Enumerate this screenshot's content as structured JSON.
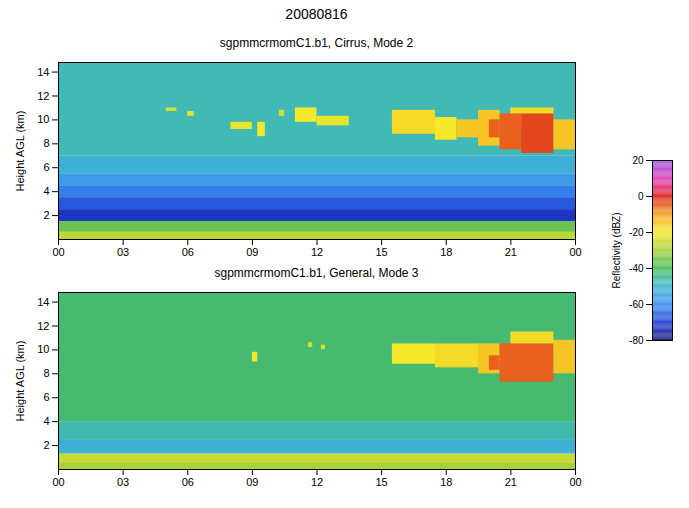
{
  "chart_data": {
    "type": "heatmap",
    "title": "20080816",
    "colorbar": {
      "label": "Reflectivity (dBZ)",
      "range": [
        -80,
        20
      ],
      "ticks": [
        -80,
        -60,
        -40,
        -20,
        0,
        20
      ]
    },
    "panels": [
      {
        "subtitle": "sgpmmcrmomC1.b1, Cirrus, Mode 2",
        "ylabel": "Height AGL (km)",
        "xlim": [
          0,
          24
        ],
        "xticks": [
          {
            "value": 0,
            "label": "00"
          },
          {
            "value": 3,
            "label": "03"
          },
          {
            "value": 6,
            "label": "06"
          },
          {
            "value": 9,
            "label": "09"
          },
          {
            "value": 12,
            "label": "12"
          },
          {
            "value": 15,
            "label": "15"
          },
          {
            "value": 18,
            "label": "18"
          },
          {
            "value": 21,
            "label": "21"
          },
          {
            "value": 24,
            "label": "00"
          }
        ],
        "ylim": [
          0,
          14.8
        ],
        "yticks": [
          2,
          4,
          6,
          8,
          10,
          12,
          14
        ],
        "cells": [
          {
            "t0": 0,
            "t1": 24,
            "h0": 0,
            "h1": 0.6,
            "dbz": -28
          },
          {
            "t0": 0,
            "t1": 24,
            "h0": 0.6,
            "h1": 1.5,
            "dbz": -36
          },
          {
            "t0": 0,
            "t1": 24,
            "h0": 1.5,
            "h1": 2.5,
            "dbz": -72
          },
          {
            "t0": 0,
            "t1": 24,
            "h0": 2.5,
            "h1": 3.5,
            "dbz": -67
          },
          {
            "t0": 0,
            "t1": 24,
            "h0": 3.5,
            "h1": 4.5,
            "dbz": -62
          },
          {
            "t0": 0,
            "t1": 24,
            "h0": 4.5,
            "h1": 5.5,
            "dbz": -57
          },
          {
            "t0": 0,
            "t1": 24,
            "h0": 5.5,
            "h1": 7,
            "dbz": -52
          },
          {
            "t0": 0,
            "t1": 24,
            "h0": 7,
            "h1": 14.8,
            "dbz": -48
          },
          {
            "t0": 5,
            "t1": 5.5,
            "h0": 10.7,
            "h1": 11,
            "dbz": -25
          },
          {
            "t0": 6,
            "t1": 6.3,
            "h0": 10.3,
            "h1": 10.7,
            "dbz": -22
          },
          {
            "t0": 8,
            "t1": 9,
            "h0": 9.2,
            "h1": 9.8,
            "dbz": -22
          },
          {
            "t0": 9.25,
            "t1": 9.6,
            "h0": 8.6,
            "h1": 9.8,
            "dbz": -20
          },
          {
            "t0": 10.25,
            "t1": 10.5,
            "h0": 10.3,
            "h1": 10.8,
            "dbz": -25
          },
          {
            "t0": 11,
            "t1": 12,
            "h0": 9.8,
            "h1": 11,
            "dbz": -20
          },
          {
            "t0": 12,
            "t1": 13.5,
            "h0": 9.5,
            "h1": 10.3,
            "dbz": -22
          },
          {
            "t0": 15.5,
            "t1": 17.5,
            "h0": 8.8,
            "h1": 10.8,
            "dbz": -18
          },
          {
            "t0": 17.5,
            "t1": 18.5,
            "h0": 8.3,
            "h1": 10.2,
            "dbz": -20
          },
          {
            "t0": 18.5,
            "t1": 19.5,
            "h0": 8.5,
            "h1": 10,
            "dbz": -15
          },
          {
            "t0": 19.5,
            "t1": 20.5,
            "h0": 7.8,
            "h1": 10.8,
            "dbz": -15
          },
          {
            "t0": 20,
            "t1": 20.5,
            "h0": 8.5,
            "h1": 10,
            "dbz": -5
          },
          {
            "t0": 21,
            "t1": 23,
            "h0": 9.5,
            "h1": 11,
            "dbz": -18
          },
          {
            "t0": 20.5,
            "t1": 21.5,
            "h0": 7.5,
            "h1": 10.5,
            "dbz": -5
          },
          {
            "t0": 21.5,
            "t1": 23,
            "h0": 7.2,
            "h1": 10.5,
            "dbz": -3
          },
          {
            "t0": 23,
            "t1": 24,
            "h0": 7.5,
            "h1": 10,
            "dbz": -15
          }
        ]
      },
      {
        "subtitle": "sgpmmcrmomC1.b1, General, Mode 3",
        "ylabel": "Height AGL (km)",
        "xlim": [
          0,
          24
        ],
        "xticks": [
          {
            "value": 0,
            "label": "00"
          },
          {
            "value": 3,
            "label": "03"
          },
          {
            "value": 6,
            "label": "06"
          },
          {
            "value": 9,
            "label": "09"
          },
          {
            "value": 12,
            "label": "12"
          },
          {
            "value": 15,
            "label": "15"
          },
          {
            "value": 18,
            "label": "18"
          },
          {
            "value": 21,
            "label": "21"
          },
          {
            "value": 24,
            "label": "00"
          }
        ],
        "ylim": [
          0,
          14.8
        ],
        "yticks": [
          2,
          4,
          6,
          8,
          10,
          12,
          14
        ],
        "cells": [
          {
            "t0": 0,
            "t1": 24,
            "h0": 0,
            "h1": 0.5,
            "dbz": -30
          },
          {
            "t0": 0,
            "t1": 24,
            "h0": 0.5,
            "h1": 1.3,
            "dbz": -26
          },
          {
            "t0": 0,
            "t1": 24,
            "h0": 1.3,
            "h1": 2.5,
            "dbz": -52
          },
          {
            "t0": 0,
            "t1": 24,
            "h0": 2.5,
            "h1": 4,
            "dbz": -47
          },
          {
            "t0": 0,
            "t1": 24,
            "h0": 4,
            "h1": 14.8,
            "dbz": -42
          },
          {
            "t0": 9,
            "t1": 9.25,
            "h0": 9,
            "h1": 9.8,
            "dbz": -20
          },
          {
            "t0": 11.6,
            "t1": 11.8,
            "h0": 10.2,
            "h1": 10.6,
            "dbz": -25
          },
          {
            "t0": 12.2,
            "t1": 12.4,
            "h0": 10,
            "h1": 10.4,
            "dbz": -25
          },
          {
            "t0": 15.5,
            "t1": 17.5,
            "h0": 8.8,
            "h1": 10.5,
            "dbz": -20
          },
          {
            "t0": 17.5,
            "t1": 19.5,
            "h0": 8.5,
            "h1": 10.5,
            "dbz": -18
          },
          {
            "t0": 19.5,
            "t1": 20.5,
            "h0": 8,
            "h1": 10.5,
            "dbz": -15
          },
          {
            "t0": 20,
            "t1": 20.5,
            "h0": 8.3,
            "h1": 9.5,
            "dbz": -5
          },
          {
            "t0": 21,
            "t1": 23,
            "h0": 10,
            "h1": 11.5,
            "dbz": -18
          },
          {
            "t0": 20.5,
            "t1": 23,
            "h0": 7.3,
            "h1": 10.5,
            "dbz": -5
          },
          {
            "t0": 23,
            "t1": 24,
            "h0": 8,
            "h1": 10.8,
            "dbz": -15
          }
        ]
      }
    ]
  }
}
